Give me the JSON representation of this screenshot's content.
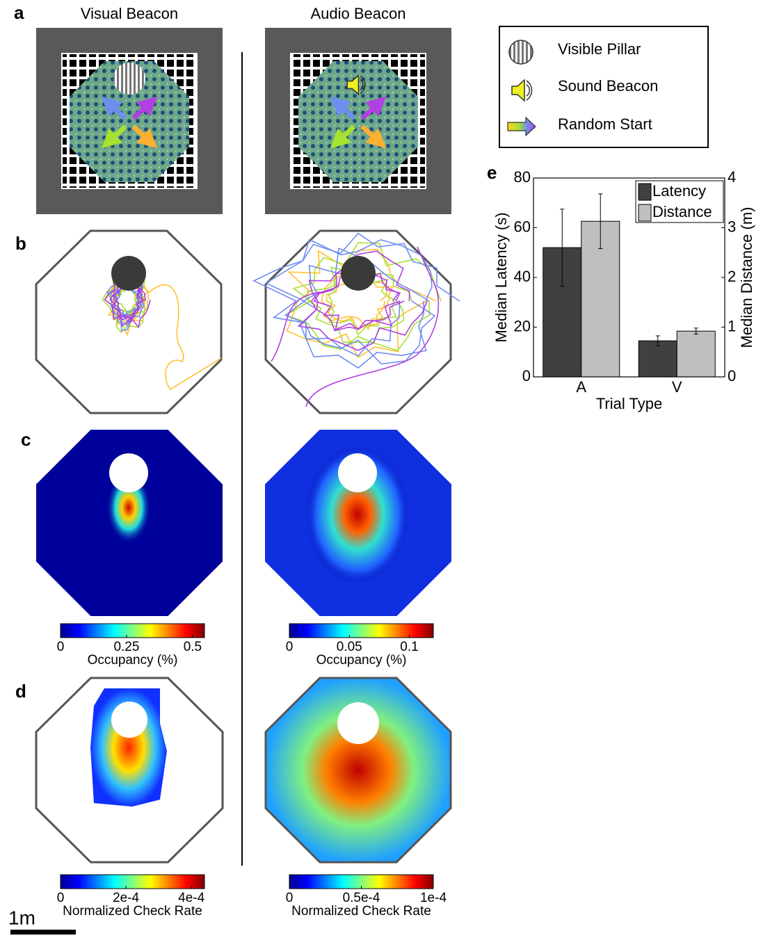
{
  "chart_data": {
    "type": "bar",
    "xlabel": "Trial Type",
    "ylabel": "Median Latency (s)",
    "y2label": "Median Distance (m)",
    "categories": [
      "A",
      "V"
    ],
    "series": [
      {
        "name": "Latency",
        "color": "#404040",
        "values": [
          52,
          14.5
        ],
        "errors": [
          15.5,
          2
        ]
      },
      {
        "name": "Distance",
        "color": "#bfbfbf",
        "axis": "y2",
        "values": [
          3.13,
          0.92
        ],
        "errors": [
          0.55,
          0.06
        ]
      }
    ],
    "ylim": [
      0,
      80
    ],
    "yticks": [
      0,
      20,
      40,
      60,
      80
    ],
    "y2lim": [
      0,
      4
    ],
    "y2ticks": [
      0,
      1,
      2,
      3,
      4
    ],
    "legend": "upper right"
  },
  "figure": {
    "panel_labels": [
      "a",
      "b",
      "c",
      "d",
      "e"
    ],
    "column_titles": [
      "Visual Beacon",
      "Audio Beacon"
    ],
    "legend": [
      "Visible Pillar",
      "Sound Beacon",
      "Random Start"
    ],
    "colorbars": [
      {
        "label": "Occupancy (%)",
        "lim": [
          0,
          0.545
        ],
        "ticks": [
          0,
          0.25,
          0.5
        ]
      },
      {
        "label": "Occupancy (%)",
        "lim": [
          0,
          0.12
        ],
        "ticks": [
          0,
          0.05,
          0.1
        ]
      },
      {
        "label": "Normalized Check Rate",
        "lim": [
          0,
          0.00044
        ],
        "ticks": [
          0,
          {
            "value": 0.0002,
            "label": "2e-4"
          },
          {
            "value": 0.0004,
            "label": "4e-4"
          }
        ]
      },
      {
        "label": "Normalized Check Rate",
        "lim": [
          0,
          0.0001
        ],
        "ticks": [
          0,
          {
            "value": 5e-05,
            "label": "0.5e-4"
          },
          {
            "value": 0.0001,
            "label": "1e-4"
          }
        ]
      }
    ],
    "scale_bar": "1m"
  }
}
